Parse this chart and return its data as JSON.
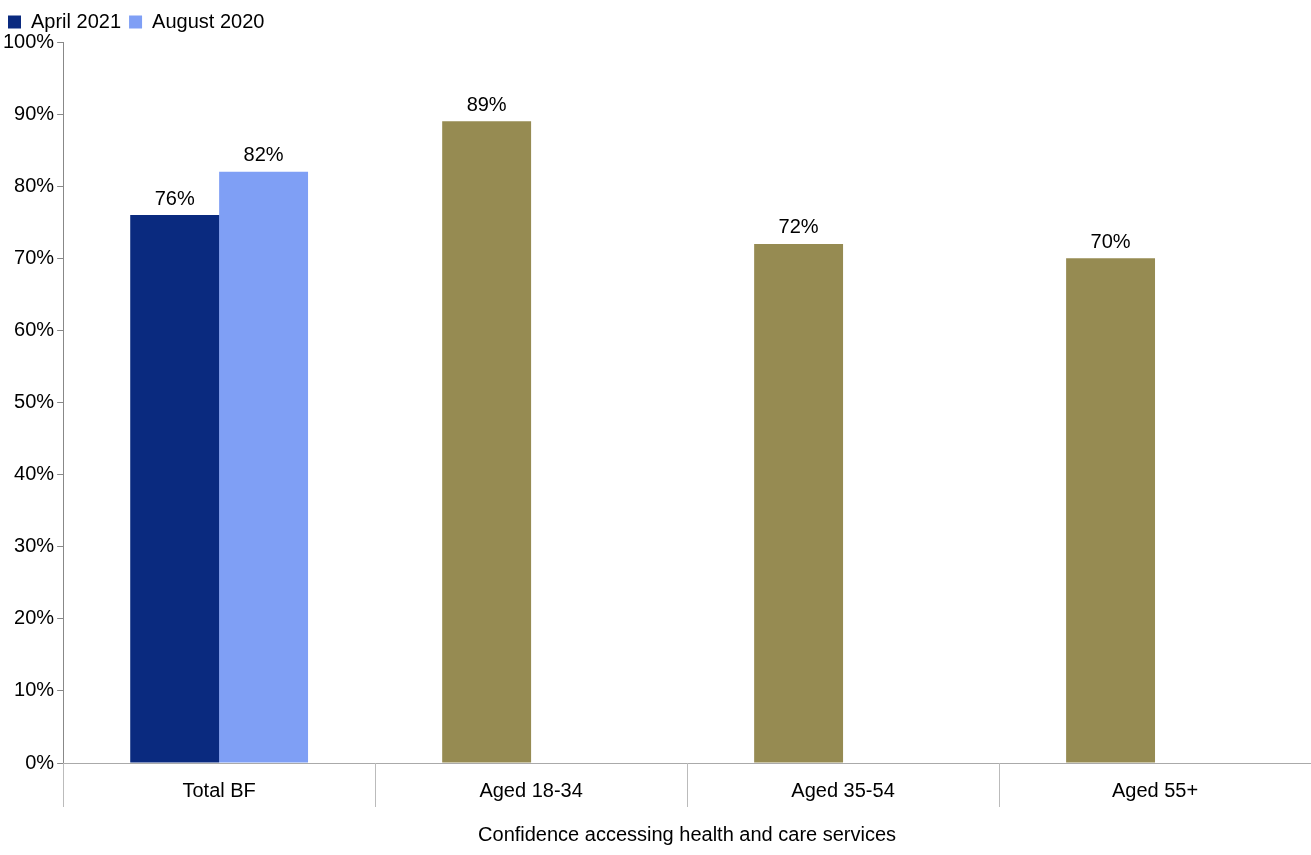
{
  "chart_data": {
    "type": "bar",
    "xlabel": "Confidence accessing health and care services",
    "categories": [
      "Total BF",
      "Aged 18-34",
      "Aged 35-54",
      "Aged 55+"
    ],
    "series": [
      {
        "name": "April 2021",
        "colors": [
          "#0a2a7f",
          "#968b52",
          "#968b52",
          "#968b52"
        ],
        "values": [
          76,
          89,
          72,
          70
        ],
        "value_labels": [
          "76%",
          "89%",
          "72%",
          "70%"
        ]
      },
      {
        "name": "August 2020",
        "color": "#7f9ff5",
        "values": [
          82,
          null,
          null,
          null
        ],
        "value_labels": [
          "82%",
          null,
          null,
          null
        ]
      }
    ],
    "ylim": [
      0,
      100
    ],
    "yticks": [
      {
        "value": 0,
        "label": "0%"
      },
      {
        "value": 10,
        "label": "10%"
      },
      {
        "value": 20,
        "label": "20%"
      },
      {
        "value": 30,
        "label": "30%"
      },
      {
        "value": 40,
        "label": "40%"
      },
      {
        "value": 50,
        "label": "50%"
      },
      {
        "value": 60,
        "label": "60%"
      },
      {
        "value": 70,
        "label": "70%"
      },
      {
        "value": 80,
        "label": "80%"
      },
      {
        "value": 90,
        "label": "90%"
      },
      {
        "value": 100,
        "label": "100%"
      }
    ],
    "grid": false,
    "legend": "top left"
  }
}
